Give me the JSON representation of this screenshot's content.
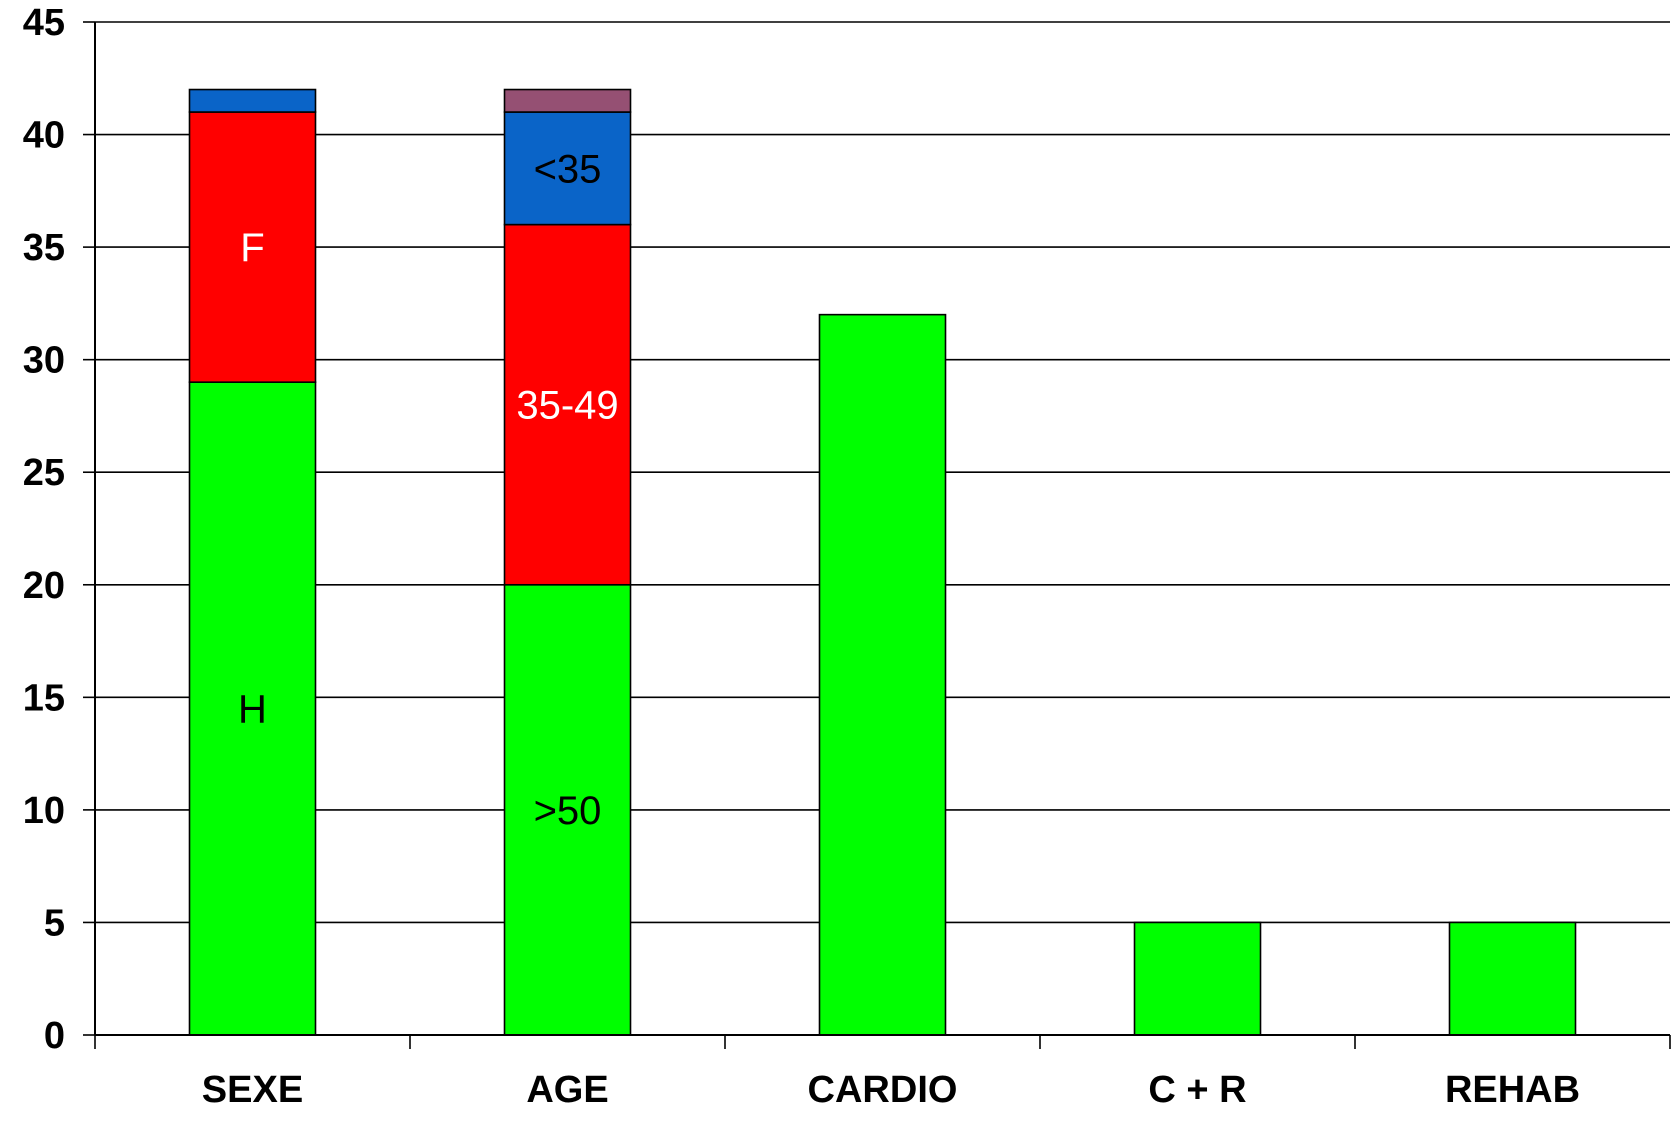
{
  "chart_data": {
    "type": "bar",
    "stacked": true,
    "categories": [
      "SEXE",
      "AGE",
      "CARDIO",
      "C + R",
      "REHAB"
    ],
    "ylim": [
      0,
      45
    ],
    "yticks": [
      0,
      5,
      10,
      15,
      20,
      25,
      30,
      35,
      40,
      45
    ],
    "grid": true,
    "legend": "none",
    "title": "",
    "xlabel": "",
    "ylabel": "",
    "bars": [
      {
        "category": "SEXE",
        "segments": [
          {
            "label": "H",
            "value": 29,
            "color": "#00ff00",
            "text_color": "#000000"
          },
          {
            "label": "F",
            "value": 12,
            "color": "#ff0000",
            "text_color": "#ffffff"
          },
          {
            "label": "",
            "value": 1,
            "color": "#0a64c8",
            "text_color": "#000000"
          }
        ]
      },
      {
        "category": "AGE",
        "segments": [
          {
            "label": ">50",
            "value": 20,
            "color": "#00ff00",
            "text_color": "#000000"
          },
          {
            "label": "35-49",
            "value": 16,
            "color": "#ff0000",
            "text_color": "#ffffff"
          },
          {
            "label": "<35",
            "value": 5,
            "color": "#0a64c8",
            "text_color": "#000000"
          },
          {
            "label": "",
            "value": 1,
            "color": "#955073",
            "text_color": "#000000"
          }
        ]
      },
      {
        "category": "CARDIO",
        "segments": [
          {
            "label": "",
            "value": 32,
            "color": "#00ff00",
            "text_color": "#000000"
          }
        ]
      },
      {
        "category": "C + R",
        "segments": [
          {
            "label": "",
            "value": 5,
            "color": "#00ff00",
            "text_color": "#000000"
          }
        ]
      },
      {
        "category": "REHAB",
        "segments": [
          {
            "label": "",
            "value": 5,
            "color": "#00ff00",
            "text_color": "#000000"
          }
        ]
      }
    ]
  }
}
